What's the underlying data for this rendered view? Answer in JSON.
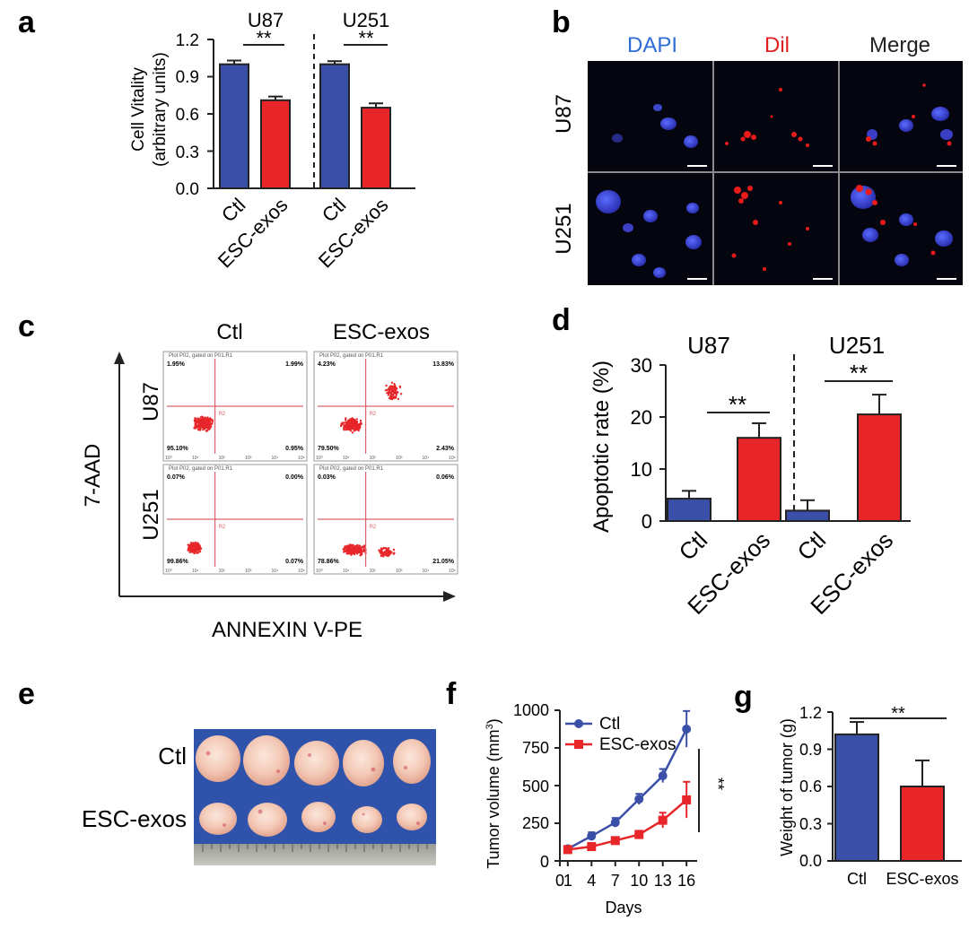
{
  "colors": {
    "blue": "#3a4fa8",
    "red": "#e8262a",
    "axis": "#222222",
    "gate": "#d9646a",
    "tray": "#2e4fa6"
  },
  "panel_letters": {
    "a": "a",
    "b": "b",
    "c": "c",
    "d": "d",
    "e": "e",
    "f": "f",
    "g": "g"
  },
  "chart_data": [
    {
      "id": "a",
      "type": "bar",
      "ylabel_line1": "Cell Vitality",
      "ylabel_line2": "(arbitrary units)",
      "ylim": [
        0,
        1.2
      ],
      "yticks": [
        "0.0",
        "0.3",
        "0.6",
        "0.9",
        "1.2"
      ],
      "groups": [
        {
          "title": "U87",
          "sig": "**",
          "categories": [
            "Ctl",
            "ESC-exos"
          ],
          "values": [
            1.0,
            0.71
          ],
          "errors": [
            0.03,
            0.03
          ]
        },
        {
          "title": "U251",
          "sig": "**",
          "categories": [
            "Ctl",
            "ESC-exos"
          ],
          "values": [
            1.0,
            0.65
          ],
          "errors": [
            0.025,
            0.035
          ]
        }
      ]
    },
    {
      "id": "d",
      "type": "bar",
      "ylabel": "Apoptotic rate  (%)",
      "ylim": [
        0,
        30
      ],
      "yticks": [
        "0",
        "10",
        "20",
        "30"
      ],
      "groups": [
        {
          "title": "U87",
          "sig": "**",
          "categories": [
            "Ctl",
            "ESC-exos"
          ],
          "values": [
            4.3,
            16.0
          ],
          "errors": [
            1.5,
            2.8
          ]
        },
        {
          "title": "U251",
          "sig": "**",
          "categories": [
            "Ctl",
            "ESC-exos"
          ],
          "values": [
            2.0,
            20.5
          ],
          "errors": [
            2.0,
            3.8
          ]
        }
      ]
    },
    {
      "id": "f",
      "type": "line",
      "ylabel": "Tumor volume (mm",
      "ylabel_sup": "3",
      "ylabel_close": ")",
      "xlabel": "Days",
      "ylim": [
        0,
        1000
      ],
      "yticks": [
        "0",
        "250",
        "500",
        "750",
        "1000"
      ],
      "xlim": [
        0,
        17
      ],
      "xticks": [
        "0",
        "1",
        "4",
        "7",
        "10",
        "13",
        "16"
      ],
      "xtick_values": [
        0,
        1,
        4,
        7,
        10,
        13,
        16
      ],
      "x": [
        1,
        4,
        7,
        10,
        13,
        16
      ],
      "sig": "**",
      "series": [
        {
          "name": "Ctl",
          "values": [
            80,
            165,
            255,
            410,
            565,
            875
          ],
          "errors": [
            15,
            25,
            30,
            35,
            45,
            120
          ]
        },
        {
          "name": "ESC-exos",
          "values": [
            75,
            95,
            135,
            175,
            270,
            405
          ],
          "errors": [
            10,
            15,
            20,
            25,
            50,
            120
          ]
        }
      ]
    },
    {
      "id": "g",
      "type": "bar",
      "ylabel": "Weight of tumor (g)",
      "ylim": [
        0,
        1.2
      ],
      "yticks": [
        "0.0",
        "0.3",
        "0.6",
        "0.9",
        "1.2"
      ],
      "sig": "**",
      "categories": [
        "Ctl",
        "ESC-exos"
      ],
      "values": [
        1.02,
        0.6
      ],
      "errors": [
        0.1,
        0.21
      ]
    }
  ],
  "panel_b": {
    "columns": [
      "DAPI",
      "Dil",
      "Merge"
    ],
    "rows": [
      "U87",
      "U251"
    ]
  },
  "panel_c": {
    "columns": [
      "Ctl",
      "ESC-exos"
    ],
    "rows": [
      "U87",
      "U251"
    ],
    "y_axis_label": "7-AAD",
    "x_axis_label": "ANNEXIN V-PE",
    "plot_header": "Plot P02, gated on P01.R1",
    "gate_label": "R2",
    "quadrants": [
      {
        "ul": "1.95%",
        "ur": "1.99%",
        "ll": "95.10%",
        "lr": "0.95%"
      },
      {
        "ul": "4.23%",
        "ur": "13.83%",
        "ll": "79.50%",
        "lr": "2.43%"
      },
      {
        "ul": "0.07%",
        "ur": "0.00%",
        "ll": "99.86%",
        "lr": "0.07%"
      },
      {
        "ul": "0.03%",
        "ur": "0.06%",
        "ll": "78.86%",
        "lr": "21.05%"
      }
    ],
    "axis_ticks": [
      "10⁰",
      "10¹",
      "10²",
      "10³",
      "10⁴",
      "10⁵"
    ]
  },
  "panel_e": {
    "rows": [
      "Ctl",
      "ESC-exos"
    ]
  }
}
